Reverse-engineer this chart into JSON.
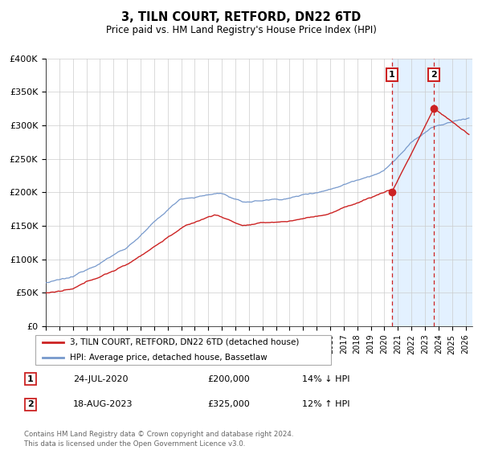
{
  "title": "3, TILN COURT, RETFORD, DN22 6TD",
  "subtitle": "Price paid vs. HM Land Registry's House Price Index (HPI)",
  "ylim": [
    0,
    400000
  ],
  "xlim_start": 1995.0,
  "xlim_end": 2026.5,
  "yticks": [
    0,
    50000,
    100000,
    150000,
    200000,
    250000,
    300000,
    350000,
    400000
  ],
  "ytick_labels": [
    "£0",
    "£50K",
    "£100K",
    "£150K",
    "£200K",
    "£250K",
    "£300K",
    "£350K",
    "£400K"
  ],
  "hpi_color": "#7799cc",
  "price_color": "#cc2222",
  "marker1_x": 2020.56,
  "marker1_y": 200000,
  "marker2_x": 2023.63,
  "marker2_y": 325000,
  "sale1_date": "24-JUL-2020",
  "sale1_price": "£200,000",
  "sale1_hpi": "14% ↓ HPI",
  "sale2_date": "18-AUG-2023",
  "sale2_price": "£325,000",
  "sale2_hpi": "12% ↑ HPI",
  "legend_line1": "3, TILN COURT, RETFORD, DN22 6TD (detached house)",
  "legend_line2": "HPI: Average price, detached house, Bassetlaw",
  "footer1": "Contains HM Land Registry data © Crown copyright and database right 2024.",
  "footer2": "This data is licensed under the Open Government Licence v3.0.",
  "bg_color": "#ffffff",
  "grid_color": "#cccccc",
  "shaded_color": "#ddeeff"
}
